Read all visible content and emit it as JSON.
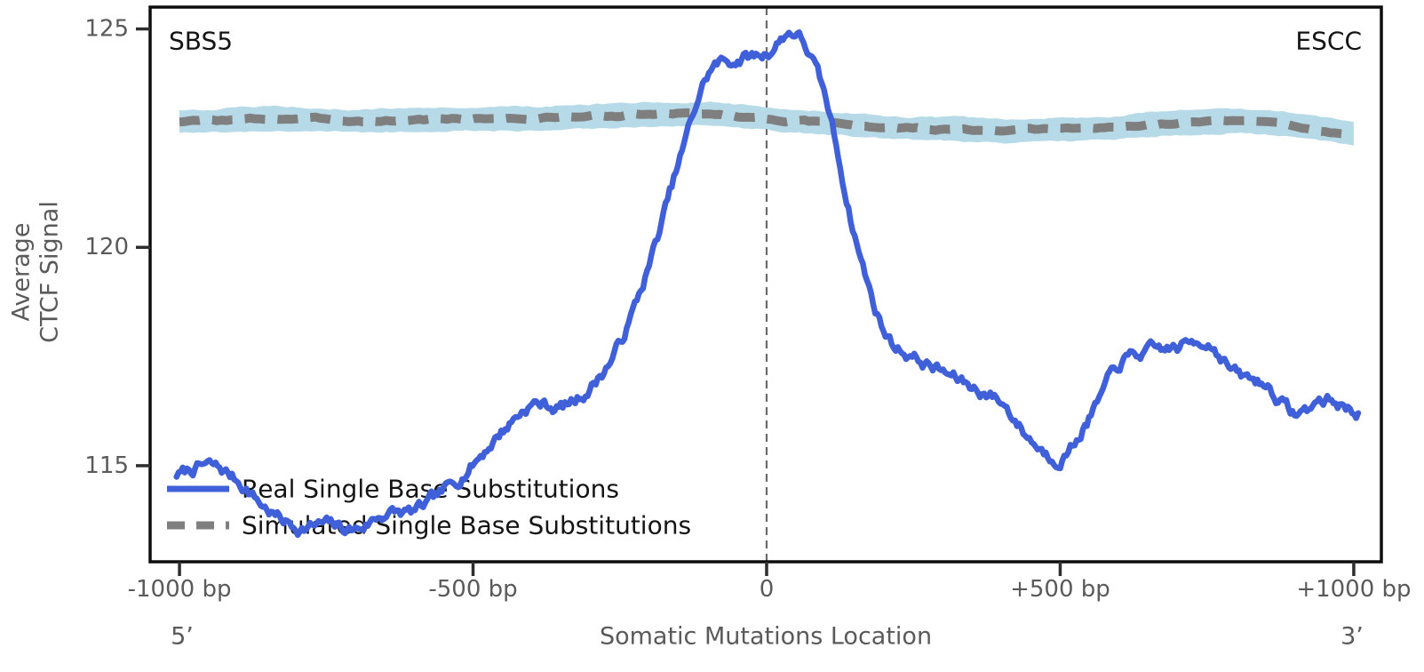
{
  "figure": {
    "corner_label_left": "SBS5",
    "corner_label_right": "ESCC",
    "ylabel_line1": "Average",
    "ylabel_line2": "CTCF Signal",
    "xlabel": "Somatic Mutations Location",
    "five_prime_label": "5’",
    "three_prime_label": "3’"
  },
  "legend": {
    "position": "lower left",
    "items": [
      {
        "label": "Real Single Base Substitutions",
        "color": "#3f60d8",
        "style": "solid"
      },
      {
        "label": "Simulated Single Base Substitutions",
        "color": "#7f7f7f",
        "style": "dashed"
      }
    ]
  },
  "colors": {
    "real_line": "#3f60d8",
    "simulated_line": "#7f7f7f",
    "simulated_band": "#b6dae8",
    "zero_line": "#6b6b6b",
    "spine": "#0d0d0d",
    "tick_mark": "#2e2e2e",
    "tick_text": "#5a5a5a",
    "annotation_text": "#141414",
    "background": "#ffffff"
  },
  "chart_data": {
    "type": "line",
    "title": "",
    "xlabel": "Somatic Mutations Location",
    "ylabel": "Average CTCF Signal",
    "corner_annotations": {
      "top_left": "SBS5",
      "top_right": "ESCC"
    },
    "end_annotations": {
      "left": "5’",
      "right": "3’"
    },
    "grid": false,
    "legend_position": "lower left",
    "xlim": [
      -1050,
      1047
    ],
    "ylim": [
      112.8,
      125.5
    ],
    "x_unit": "bp",
    "xticks": [
      {
        "bp": -1000,
        "label": "-1000 bp"
      },
      {
        "bp": -500,
        "label": "-500 bp"
      },
      {
        "bp": 0,
        "label": "0"
      },
      {
        "bp": 500,
        "label": "+500 bp"
      },
      {
        "bp": 1000,
        "label": "+1000 bp"
      }
    ],
    "yticks": [
      {
        "value": 115,
        "label": "115"
      },
      {
        "value": 120,
        "label": "120"
      },
      {
        "value": 125,
        "label": "125"
      }
    ],
    "x_bp": [
      -1000,
      -950,
      -900,
      -850,
      -800,
      -750,
      -700,
      -650,
      -600,
      -550,
      -500,
      -450,
      -400,
      -350,
      -300,
      -250,
      -200,
      -150,
      -100,
      -50,
      0,
      50,
      100,
      150,
      200,
      250,
      300,
      350,
      400,
      450,
      500,
      550,
      600,
      650,
      700,
      750,
      800,
      850,
      900,
      950,
      1000
    ],
    "series": [
      {
        "name": "Real Single Base Substitutions",
        "style": "solid",
        "color": "#3f60d8",
        "values": [
          114.8,
          115.0,
          114.65,
          114.0,
          113.6,
          113.65,
          113.55,
          113.9,
          113.95,
          114.4,
          115.05,
          115.8,
          116.4,
          116.35,
          116.8,
          117.8,
          119.6,
          121.9,
          123.95,
          124.3,
          124.45,
          124.9,
          123.4,
          120.3,
          118.1,
          117.5,
          117.15,
          116.8,
          116.45,
          115.6,
          115.2,
          116.1,
          117.3,
          117.6,
          117.7,
          117.85,
          117.1,
          116.85,
          116.2,
          116.5,
          116.25
        ]
      },
      {
        "name": "Simulated Single Base Substitutions",
        "style": "dashed",
        "color": "#7f7f7f",
        "band_color": "#b6dae8",
        "band_halfwidth": 0.27,
        "values": [
          122.88,
          122.9,
          122.92,
          122.94,
          122.95,
          122.93,
          122.9,
          122.9,
          122.92,
          122.94,
          122.95,
          122.96,
          122.95,
          122.98,
          123.0,
          123.02,
          123.04,
          123.05,
          123.05,
          123.0,
          122.95,
          122.9,
          122.85,
          122.8,
          122.75,
          122.72,
          122.7,
          122.68,
          122.65,
          122.68,
          122.7,
          122.72,
          122.75,
          122.8,
          122.85,
          122.88,
          122.9,
          122.85,
          122.78,
          122.68,
          122.6
        ]
      }
    ],
    "zero_reference_line": {
      "x_bp": 0,
      "style": "dashed"
    }
  }
}
